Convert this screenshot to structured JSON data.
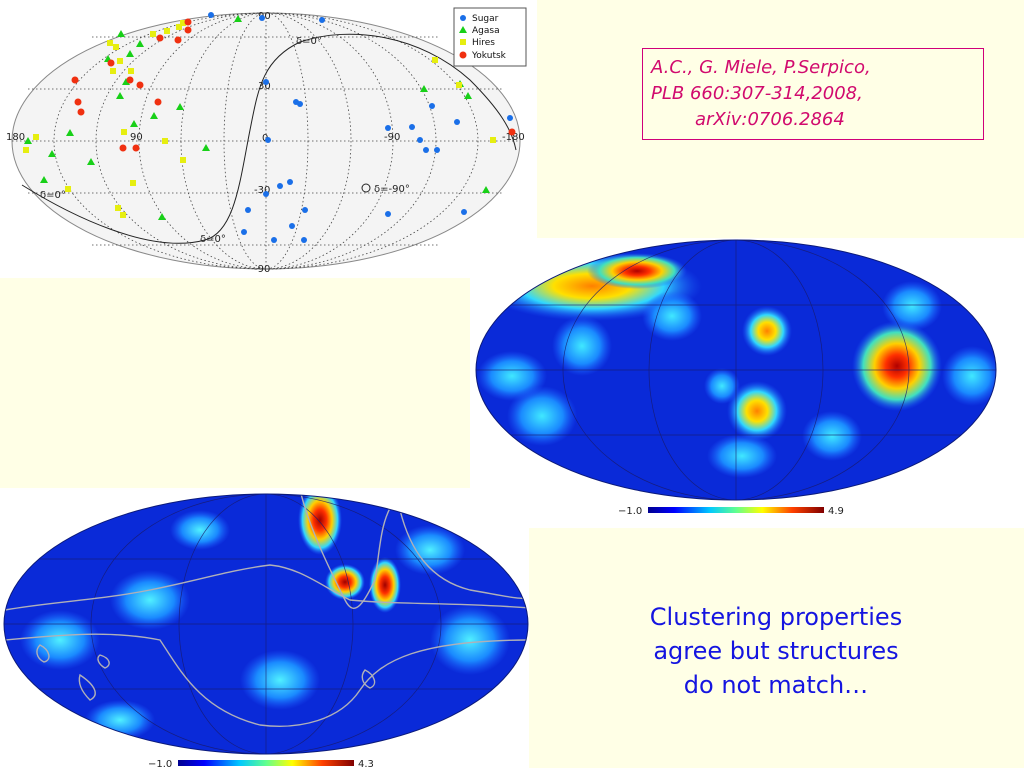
{
  "reference": {
    "line1": "A.C., G. Miele, P.Serpico,",
    "line2": "PLB 660:307-314,2008,",
    "line3": "arXiv:0706.2864"
  },
  "message": {
    "line1": "Clustering properties",
    "line2": "agree but structures",
    "line3": "do not match…"
  },
  "events_map": {
    "legend": [
      {
        "label": "Sugar",
        "color": "#1a6fe8",
        "marker": "circle"
      },
      {
        "label": "Agasa",
        "color": "#18d018",
        "marker": "triangle"
      },
      {
        "label": "Hires",
        "color": "#e6ee10",
        "marker": "square"
      },
      {
        "label": "Yokutsk",
        "color": "#f03010",
        "marker": "pentagon"
      }
    ],
    "lat_labels": {
      "top": "90",
      "p30": "30",
      "zero": "0",
      "m30": "-30",
      "bottom": "-90"
    },
    "lon_labels": {
      "left": "180",
      "p90": "90",
      "m90": "-90",
      "right": "-180"
    },
    "curve_labels": {
      "d0_top": "δ=0°",
      "d0_mid": "δ=0°",
      "d0_left": "δ=0°",
      "dm90": "δ=-90°"
    }
  },
  "colorbar_top": {
    "min": "−1.0",
    "max": "4.9"
  },
  "colorbar_bottom": {
    "min": "−1.0",
    "max": "4.3"
  }
}
